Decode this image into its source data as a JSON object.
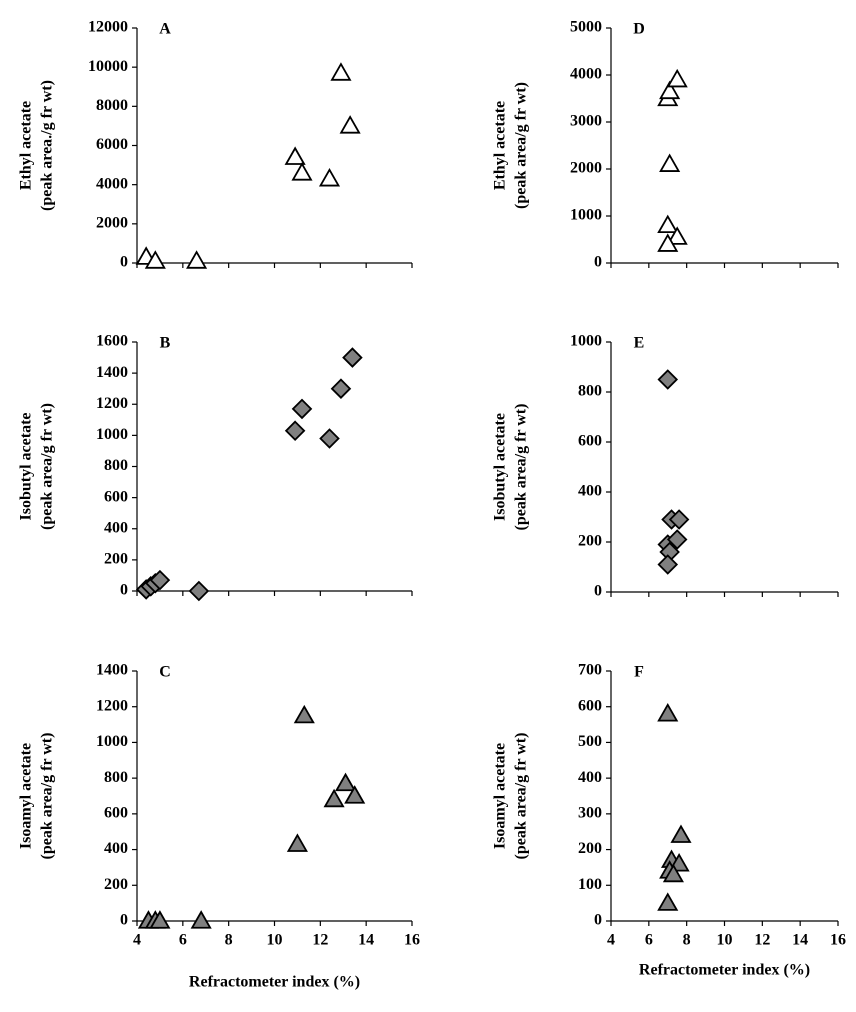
{
  "chart_data": [
    {
      "type": "scatter",
      "label": "A",
      "ylabel": [
        "Ethyl acetate",
        "(peak area./g fr wt)"
      ],
      "marker": "triangle",
      "color": "#ffffff",
      "x": [
        4.4,
        4.8,
        6.6,
        10.9,
        11.2,
        12.4,
        12.9,
        13.3
      ],
      "values": [
        300,
        100,
        100,
        5400,
        4600,
        4300,
        9700,
        7000
      ],
      "xlim": [
        4,
        16
      ],
      "xticks": [
        4,
        6,
        8,
        10,
        12,
        14,
        16
      ],
      "ylim": [
        0,
        12000
      ],
      "yticks": [
        0,
        2000,
        4000,
        6000,
        8000,
        10000,
        12000
      ]
    },
    {
      "type": "scatter",
      "label": "B",
      "ylabel": [
        "Isobutyl acetate",
        "(peak area/g fr wt)"
      ],
      "marker": "diamond",
      "color": "#808080",
      "x": [
        4.4,
        4.6,
        4.8,
        5.0,
        6.7,
        10.9,
        11.2,
        12.4,
        12.9,
        13.4
      ],
      "values": [
        10,
        30,
        50,
        70,
        0,
        1030,
        1170,
        980,
        1300,
        1500
      ],
      "xlim": [
        4,
        16
      ],
      "xticks": [
        4,
        6,
        8,
        10,
        12,
        14,
        16
      ],
      "ylim": [
        0,
        1600
      ],
      "yticks": [
        0,
        200,
        400,
        600,
        800,
        1000,
        1200,
        1400,
        1600
      ]
    },
    {
      "type": "scatter",
      "label": "C",
      "ylabel": [
        "Isoamyl acetate",
        "(peak area/g fr wt)"
      ],
      "marker": "triangle",
      "color": "#808080",
      "x": [
        4.5,
        4.8,
        5.0,
        6.8,
        11.0,
        11.3,
        12.6,
        13.1,
        13.5
      ],
      "values": [
        0,
        0,
        0,
        0,
        430,
        1150,
        680,
        770,
        700
      ],
      "xlim": [
        4,
        16
      ],
      "xticks": [
        4,
        6,
        8,
        10,
        12,
        14,
        16
      ],
      "ylim": [
        0,
        1400
      ],
      "yticks": [
        0,
        200,
        400,
        600,
        800,
        1000,
        1200,
        1400
      ],
      "xlabel": "Refractometer index (%)"
    },
    {
      "type": "scatter",
      "label": "D",
      "ylabel": [
        "Ethyl acetate",
        "(peak area/g fr wt)"
      ],
      "marker": "triangle",
      "color": "#ffffff",
      "x": [
        7.0,
        7.1,
        7.5,
        7.1,
        7.0,
        7.5,
        7.0
      ],
      "values": [
        3500,
        3650,
        3900,
        2100,
        800,
        550,
        400
      ],
      "xlim": [
        4,
        16
      ],
      "xticks": [
        4,
        6,
        8,
        10,
        12,
        14,
        16
      ],
      "ylim": [
        0,
        5000
      ],
      "yticks": [
        0,
        1000,
        2000,
        3000,
        4000,
        5000
      ]
    },
    {
      "type": "scatter",
      "label": "E",
      "ylabel": [
        "Isobutyl acetate",
        "(peak area/g fr wt)"
      ],
      "marker": "diamond",
      "color": "#808080",
      "x": [
        7.0,
        7.2,
        7.6,
        7.0,
        7.5,
        7.1,
        7.0
      ],
      "values": [
        850,
        290,
        290,
        190,
        210,
        160,
        110
      ],
      "xlim": [
        4,
        16
      ],
      "xticks": [
        4,
        6,
        8,
        10,
        12,
        14,
        16
      ],
      "ylim": [
        0,
        1000
      ],
      "yticks": [
        0,
        200,
        400,
        600,
        800,
        1000
      ]
    },
    {
      "type": "scatter",
      "label": "F",
      "ylabel": [
        "Isoamyl acetate",
        "(peak area/g fr wt)"
      ],
      "marker": "triangle",
      "color": "#808080",
      "x": [
        7.0,
        7.7,
        7.2,
        7.6,
        7.1,
        7.3,
        7.0
      ],
      "values": [
        580,
        240,
        170,
        160,
        140,
        130,
        50
      ],
      "xlim": [
        4,
        16
      ],
      "xticks": [
        4,
        6,
        8,
        10,
        12,
        14,
        16
      ],
      "ylim": [
        0,
        700
      ],
      "yticks": [
        0,
        100,
        200,
        300,
        400,
        500,
        600,
        700
      ],
      "xlabel": "Refractometer index (%)"
    }
  ]
}
